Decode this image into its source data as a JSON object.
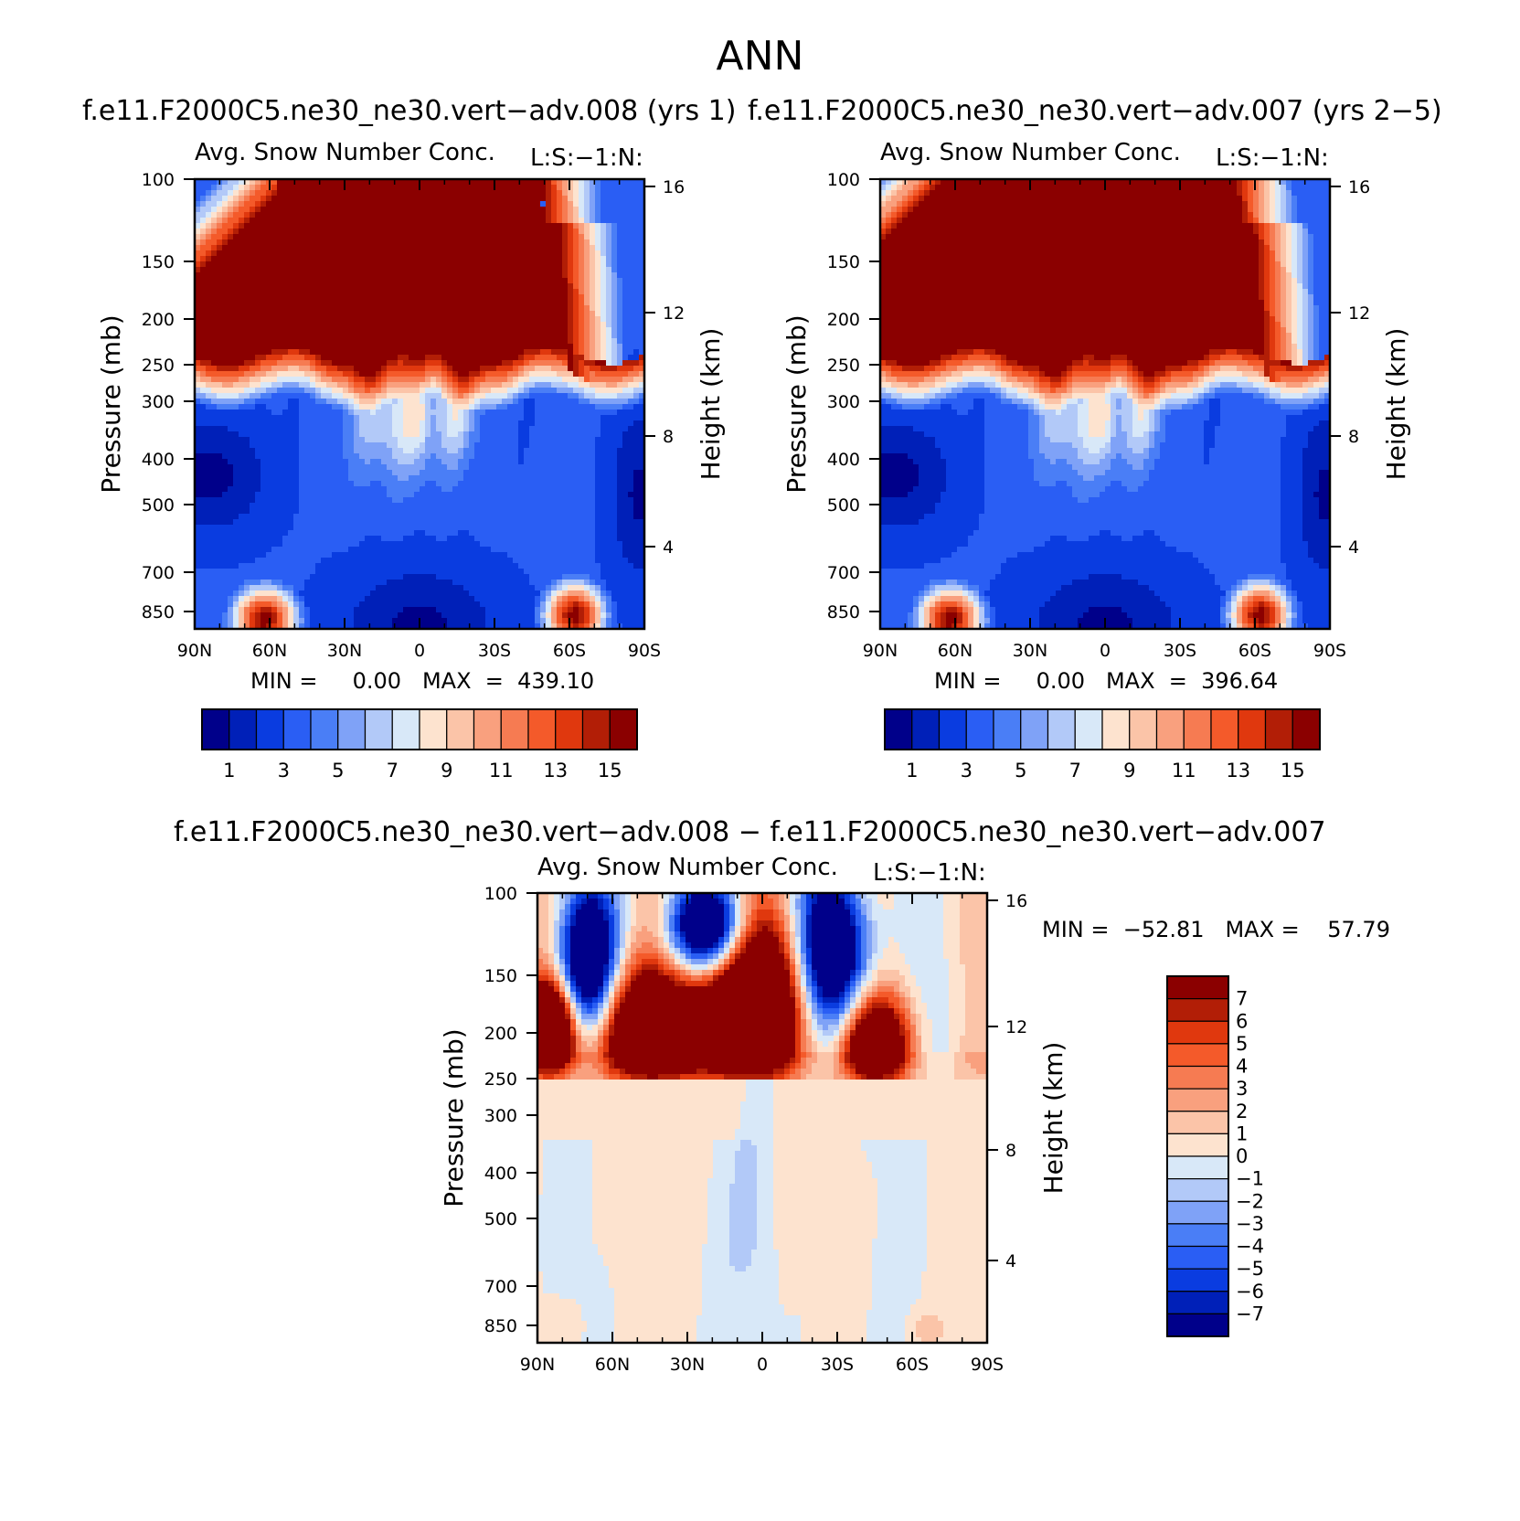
{
  "figure_title": "ANN",
  "panels": [
    {
      "case_title": "f.e11.F2000C5.ne30_ne30.vert−adv.008 (yrs 1)",
      "var_title": "Avg. Snow Number Conc.",
      "units": "L:S:−1:N:",
      "min_max": "MIN =     0.00   MAX  =  439.10"
    },
    {
      "case_title": "f.e11.F2000C5.ne30_ne30.vert−adv.007 (yrs 2−5)",
      "var_title": "Avg. Snow Number Conc.",
      "units": "L:S:−1:N:",
      "min_max": "MIN =     0.00   MAX  =  396.64"
    },
    {
      "case_title": "f.e11.F2000C5.ne30_ne30.vert−adv.008 − f.e11.F2000C5.ne30_ne30.vert−adv.007",
      "var_title": "Avg. Snow Number Conc.",
      "units": "L:S:−1:N:",
      "min_max": "MIN =  −52.81   MAX =    57.79"
    }
  ],
  "chart_data": [
    {
      "type": "heatmap",
      "title": "Avg. Snow Number Conc.",
      "ylabel": "Pressure (mb)",
      "y2label": "Height (km)",
      "x_ticks": [
        "90N",
        "60N",
        "30N",
        "0",
        "30S",
        "60S",
        "90S"
      ],
      "y_ticks": [
        "100",
        "150",
        "200",
        "250",
        "300",
        "400",
        "500",
        "700",
        "850"
      ],
      "y2_ticks": [
        "16",
        "12",
        "8",
        "4"
      ],
      "colorbar_labels": [
        "1",
        "3",
        "5",
        "7",
        "9",
        "11",
        "13",
        "15"
      ],
      "colorbar_colors": [
        "#00008a",
        "#0020b8",
        "#0a3ce0",
        "#2a5ef4",
        "#4a7ef6",
        "#7fa2f7",
        "#b2c9f8",
        "#d8e8f8",
        "#fde3cf",
        "#fbc4a8",
        "#f9a07e",
        "#f67b52",
        "#f45a2a",
        "#e0380e",
        "#b21e06",
        "#8b0000"
      ],
      "min": 0.0,
      "max": 439.1
    },
    {
      "type": "heatmap",
      "title": "Avg. Snow Number Conc.",
      "ylabel": "Pressure (mb)",
      "y2label": "Height (km)",
      "x_ticks": [
        "90N",
        "60N",
        "30N",
        "0",
        "30S",
        "60S",
        "90S"
      ],
      "y_ticks": [
        "100",
        "150",
        "200",
        "250",
        "300",
        "400",
        "500",
        "700",
        "850"
      ],
      "y2_ticks": [
        "16",
        "12",
        "8",
        "4"
      ],
      "colorbar_labels": [
        "1",
        "3",
        "5",
        "7",
        "9",
        "11",
        "13",
        "15"
      ],
      "colorbar_colors": [
        "#00008a",
        "#0020b8",
        "#0a3ce0",
        "#2a5ef4",
        "#4a7ef6",
        "#7fa2f7",
        "#b2c9f8",
        "#d8e8f8",
        "#fde3cf",
        "#fbc4a8",
        "#f9a07e",
        "#f67b52",
        "#f45a2a",
        "#e0380e",
        "#b21e06",
        "#8b0000"
      ],
      "min": 0.0,
      "max": 396.64
    },
    {
      "type": "heatmap",
      "title": "Avg. Snow Number Conc.",
      "ylabel": "Pressure (mb)",
      "y2label": "Height (km)",
      "x_ticks": [
        "90N",
        "60N",
        "30N",
        "0",
        "30S",
        "60S",
        "90S"
      ],
      "y_ticks": [
        "100",
        "150",
        "200",
        "250",
        "300",
        "400",
        "500",
        "700",
        "850"
      ],
      "y2_ticks": [
        "16",
        "12",
        "8",
        "4"
      ],
      "colorbar_labels": [
        "7",
        "6",
        "5",
        "4",
        "3",
        "2",
        "1",
        "0",
        "−1",
        "−2",
        "−3",
        "−4",
        "−5",
        "−6",
        "−7"
      ],
      "colorbar_colors": [
        "#8b0000",
        "#b21e06",
        "#e0380e",
        "#f45a2a",
        "#f67b52",
        "#f9a07e",
        "#fbc4a8",
        "#fde3cf",
        "#d8e8f8",
        "#b2c9f8",
        "#7fa2f7",
        "#4a7ef6",
        "#2a5ef4",
        "#0a3ce0",
        "#0020b8",
        "#00008a"
      ],
      "min": -52.81,
      "max": 57.79
    }
  ]
}
